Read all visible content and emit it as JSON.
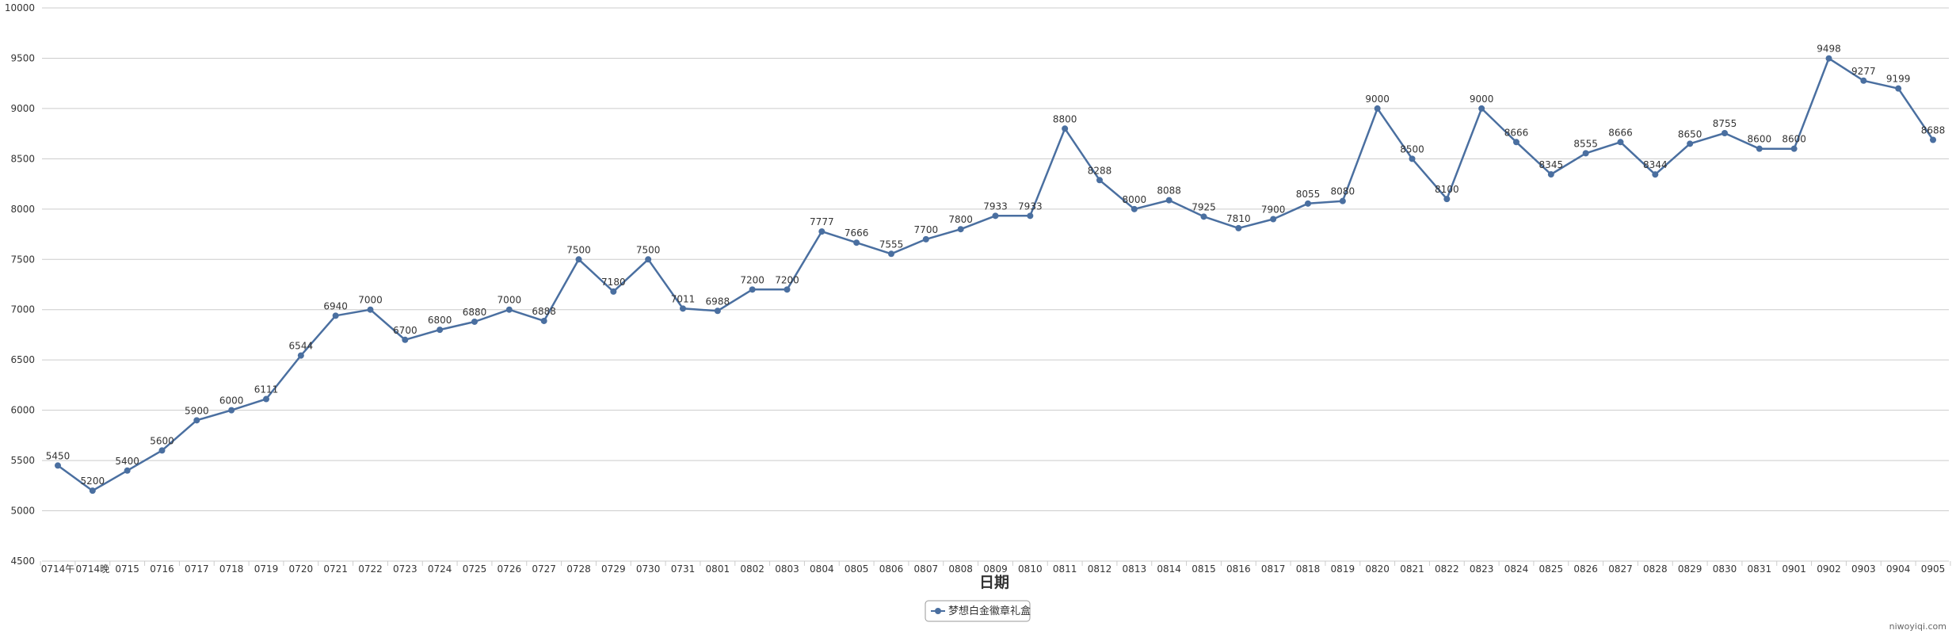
{
  "chart_data": {
    "type": "line",
    "xlabel": "日期",
    "ylabel": "",
    "ylim": [
      4500,
      10000
    ],
    "yticks": [
      4500,
      5000,
      5500,
      6000,
      6500,
      7000,
      7500,
      8000,
      8500,
      9000,
      9500,
      10000
    ],
    "grid": true,
    "legend_position": "bottom-center",
    "categories": [
      "0714午",
      "0714晚",
      "0715",
      "0716",
      "0717",
      "0718",
      "0719",
      "0720",
      "0721",
      "0722",
      "0723",
      "0724",
      "0725",
      "0726",
      "0727",
      "0728",
      "0729",
      "0730",
      "0731",
      "0801",
      "0802",
      "0803",
      "0804",
      "0805",
      "0806",
      "0807",
      "0808",
      "0809",
      "0810",
      "0811",
      "0812",
      "0813",
      "0814",
      "0815",
      "0816",
      "0817",
      "0818",
      "0819",
      "0820",
      "0821",
      "0822",
      "0823",
      "0824",
      "0825",
      "0826",
      "0827",
      "0828",
      "0829",
      "0830",
      "0831",
      "0901",
      "0902",
      "0903",
      "0904",
      "0905"
    ],
    "series": [
      {
        "name": "梦想白金徽章礼盒",
        "color": "#4a6fa0",
        "values": [
          5450,
          5200,
          5400,
          5600,
          5900,
          6000,
          6111,
          6544,
          6940,
          7000,
          6700,
          6800,
          6880,
          7000,
          6888,
          7500,
          7180,
          7500,
          7011,
          6988,
          7200,
          7200,
          7777,
          7666,
          7555,
          7700,
          7800,
          7933,
          7933,
          8800,
          8288,
          8000,
          8088,
          7925,
          7810,
          7900,
          8055,
          8080,
          9000,
          8500,
          8100,
          9000,
          8666,
          8345,
          8555,
          8666,
          8344,
          8650,
          8755,
          8600,
          8600,
          9498,
          9277,
          9199,
          8688
        ]
      }
    ]
  },
  "watermark": "niwoyiqi.com"
}
